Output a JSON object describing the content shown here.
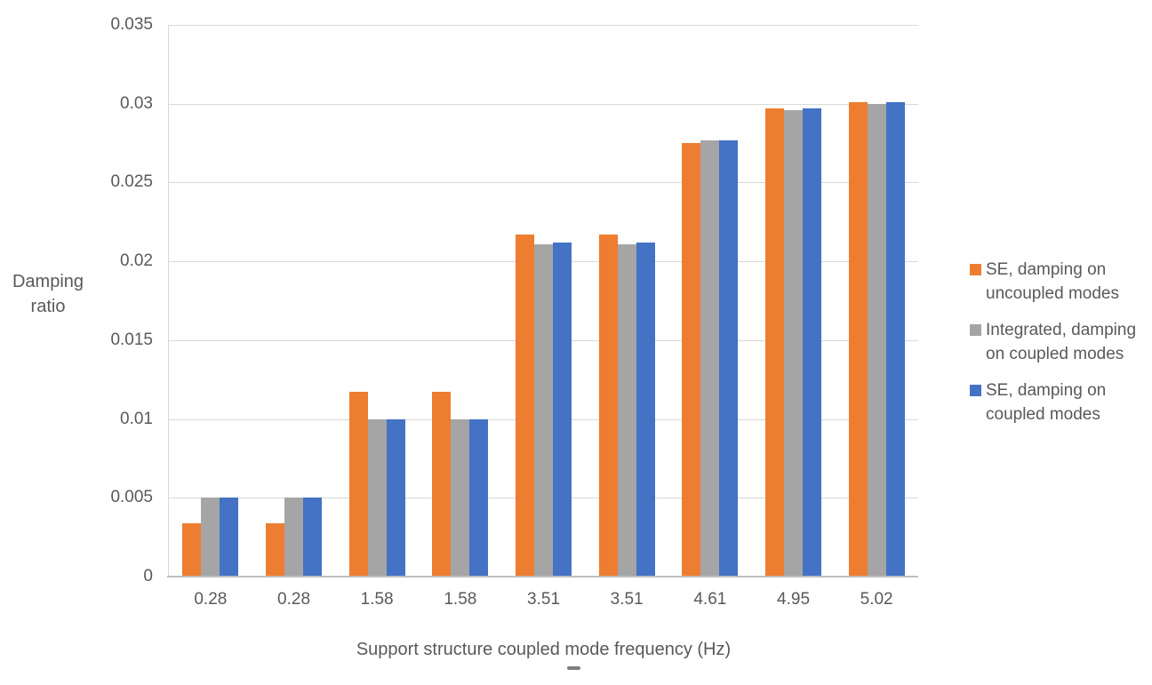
{
  "chart_data": {
    "type": "bar",
    "title": "",
    "xlabel": "Support structure coupled mode frequency (Hz)",
    "ylabel": "Damping\nratio",
    "categories": [
      "0.28",
      "0.28",
      "1.58",
      "1.58",
      "3.51",
      "3.51",
      "4.61",
      "4.95",
      "5.02"
    ],
    "series": [
      {
        "name": "SE, damping on\nuncoupled modes",
        "color": "#ED7D31",
        "values": [
          0.0034,
          0.0034,
          0.0117,
          0.0117,
          0.0217,
          0.0217,
          0.0275,
          0.0297,
          0.0301
        ]
      },
      {
        "name": "Integrated, damping\non coupled modes",
        "color": "#A5A5A5",
        "values": [
          0.005,
          0.005,
          0.01,
          0.01,
          0.0211,
          0.0211,
          0.0277,
          0.0296,
          0.03
        ]
      },
      {
        "name": "SE, damping on\ncoupled modes",
        "color": "#4472C4",
        "values": [
          0.005,
          0.005,
          0.01,
          0.01,
          0.0212,
          0.0212,
          0.0277,
          0.0297,
          0.0301
        ]
      }
    ],
    "ylim": [
      0,
      0.035
    ],
    "y_ticks": [
      0,
      0.005,
      0.01,
      0.015,
      0.02,
      0.025,
      0.03,
      0.035
    ],
    "y_tick_labels": [
      "0",
      "0.005",
      "0.01",
      "0.015",
      "0.02",
      "0.025",
      "0.03",
      "0.035"
    ],
    "grid": true,
    "legend_position": "right",
    "axis_color": "#D9D9D9",
    "baseline_color": "#BFBFBF",
    "text_color": "#595959"
  }
}
